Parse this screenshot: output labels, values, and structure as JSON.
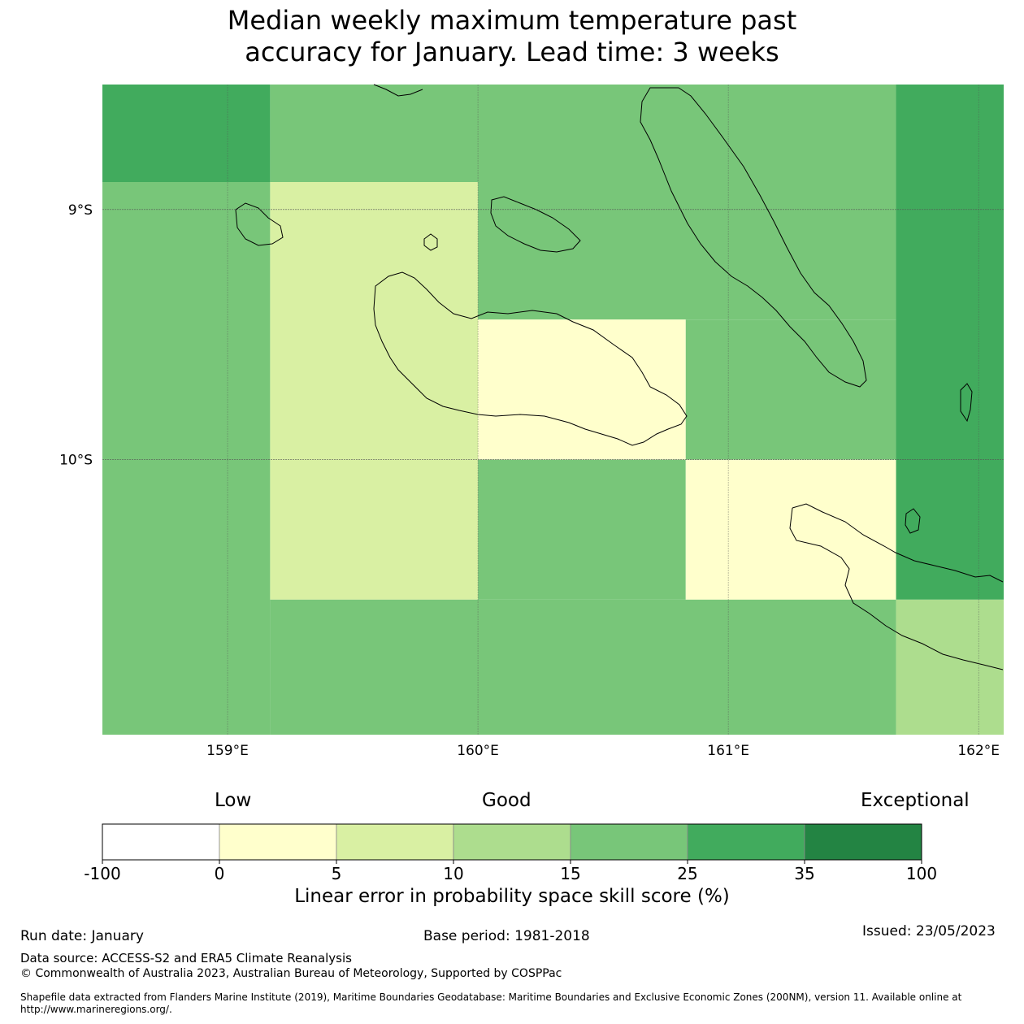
{
  "title": {
    "line1": "Median weekly maximum temperature past",
    "line2": "accuracy for January. Lead time: 3 weeks"
  },
  "map": {
    "lon_range": [
      158.5,
      162.1
    ],
    "lat_range": [
      -11.1,
      -8.5
    ],
    "lat_ticks": [
      {
        "value": -9,
        "label": "9°S"
      },
      {
        "value": -10,
        "label": "10°S"
      }
    ],
    "lon_ticks": [
      {
        "value": 159,
        "label": "159°E"
      },
      {
        "value": 160,
        "label": "160°E"
      },
      {
        "value": 161,
        "label": "161°E"
      },
      {
        "value": 162,
        "label": "162°E"
      }
    ],
    "cells": [
      {
        "lon": [
          158.5,
          159.17
        ],
        "lat": [
          -8.89,
          -8.5
        ],
        "color": "#41ab5d"
      },
      {
        "lon": [
          159.17,
          161.67
        ],
        "lat": [
          -8.89,
          -8.5
        ],
        "color": "#78c679"
      },
      {
        "lon": [
          161.67,
          162.1
        ],
        "lat": [
          -8.89,
          -8.5
        ],
        "color": "#41ab5d"
      },
      {
        "lon": [
          158.5,
          159.17
        ],
        "lat": [
          -11.1,
          -8.89
        ],
        "color": "#78c679"
      },
      {
        "lon": [
          159.17,
          160.0
        ],
        "lat": [
          -10.56,
          -8.89
        ],
        "color": "#d9f0a3"
      },
      {
        "lon": [
          160.0,
          161.67
        ],
        "lat": [
          -9.44,
          -8.89
        ],
        "color": "#78c679"
      },
      {
        "lon": [
          160.0,
          160.83
        ],
        "lat": [
          -10.0,
          -9.44
        ],
        "color": "#ffffcc"
      },
      {
        "lon": [
          160.83,
          161.67
        ],
        "lat": [
          -10.0,
          -9.44
        ],
        "color": "#78c679"
      },
      {
        "lon": [
          161.67,
          162.1
        ],
        "lat": [
          -10.56,
          -8.89
        ],
        "color": "#41ab5d"
      },
      {
        "lon": [
          160.0,
          160.83
        ],
        "lat": [
          -10.56,
          -10.0
        ],
        "color": "#78c679"
      },
      {
        "lon": [
          160.83,
          161.67
        ],
        "lat": [
          -10.56,
          -10.0
        ],
        "color": "#ffffcc"
      },
      {
        "lon": [
          159.17,
          161.67
        ],
        "lat": [
          -11.1,
          -10.56
        ],
        "color": "#78c679"
      },
      {
        "lon": [
          161.67,
          162.1
        ],
        "lat": [
          -11.1,
          -10.56
        ],
        "color": "#addd8e"
      }
    ]
  },
  "colorbar": {
    "categories": {
      "low": "Low",
      "good": "Good",
      "exceptional": "Exceptional"
    },
    "bins": [
      {
        "from": -100,
        "to": 0,
        "color": "#ffffff"
      },
      {
        "from": 0,
        "to": 5,
        "color": "#ffffcc"
      },
      {
        "from": 5,
        "to": 10,
        "color": "#d9f0a3"
      },
      {
        "from": 10,
        "to": 15,
        "color": "#addd8e"
      },
      {
        "from": 15,
        "to": 25,
        "color": "#78c679"
      },
      {
        "from": 25,
        "to": 35,
        "color": "#41ab5d"
      },
      {
        "from": 35,
        "to": 100,
        "color": "#238443"
      }
    ],
    "tick_labels": [
      "-100",
      "0",
      "5",
      "10",
      "15",
      "25",
      "35",
      "100"
    ],
    "label": "Linear error in probability space skill score (%)"
  },
  "footer": {
    "run_date": "Run date: January",
    "base_period": "Base period: 1981-2018",
    "issued": "Issued: 23/05/2023",
    "data_source": "Data source: ACCESS-S2 and ERA5 Climate Reanalysis",
    "copyright": "© Commonwealth of Australia 2023, Australian Bureau of Meteorology, Supported by COSPPac",
    "shapefile": "Shapefile data extracted from Flanders Marine Institute (2019), Maritime Boundaries Geodatabase: Maritime Boundaries and Exclusive Economic Zones (200NM), version 11. Available online at http://www.marineregions.org/."
  }
}
